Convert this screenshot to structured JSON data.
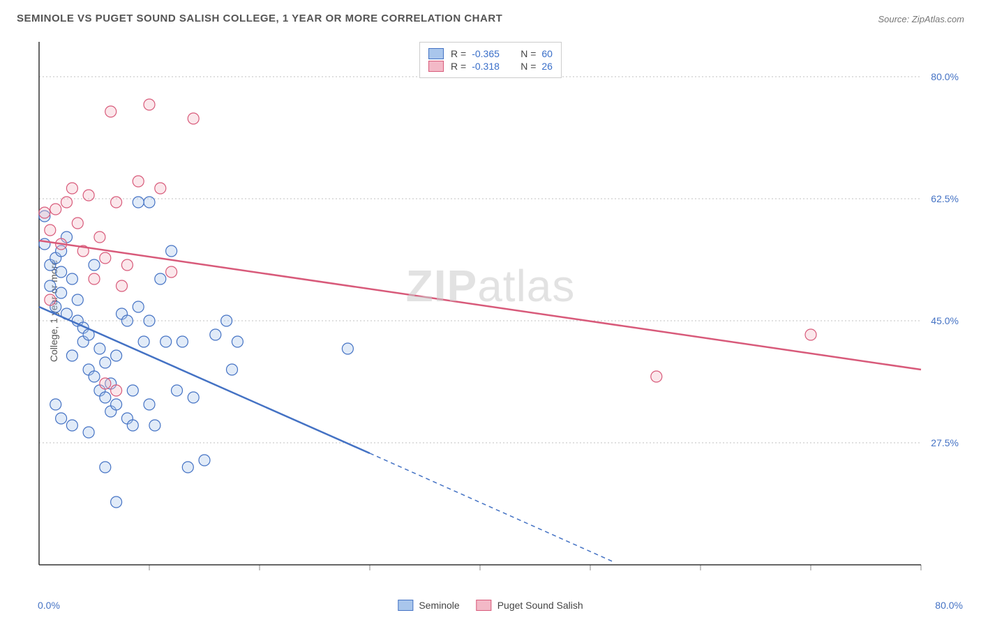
{
  "title": "SEMINOLE VS PUGET SOUND SALISH COLLEGE, 1 YEAR OR MORE CORRELATION CHART",
  "source": "Source: ZipAtlas.com",
  "ylabel": "College, 1 year or more",
  "watermark_left": "ZIP",
  "watermark_right": "atlas",
  "chart": {
    "type": "scatter",
    "xlim": [
      0,
      80
    ],
    "ylim": [
      10,
      85
    ],
    "x_tick_step": 10,
    "y_ticks": [
      27.5,
      45.0,
      62.5,
      80.0
    ],
    "y_tick_labels": [
      "27.5%",
      "45.0%",
      "62.5%",
      "80.0%"
    ],
    "x_min_label": "0.0%",
    "x_max_label": "80.0%",
    "background_color": "#ffffff",
    "grid_color": "#c0c0c0",
    "axis_color": "#333333",
    "tick_label_color": "#4472c4",
    "marker_radius": 8,
    "marker_stroke_width": 1.2,
    "marker_fill_opacity": 0.35,
    "series": [
      {
        "name": "Seminole",
        "color_fill": "#a9c6ec",
        "color_stroke": "#4472c4",
        "R": "-0.365",
        "N": "60",
        "trend": {
          "x1": 0,
          "y1": 47.0,
          "x2": 30,
          "y2": 26.0,
          "x_solid_end": 30,
          "x_dash_end": 52,
          "y_dash_end": 10.5
        },
        "points": [
          [
            0.5,
            60
          ],
          [
            0.5,
            56
          ],
          [
            1,
            53
          ],
          [
            1,
            50
          ],
          [
            1.5,
            47
          ],
          [
            1.5,
            54
          ],
          [
            2,
            55
          ],
          [
            2,
            52
          ],
          [
            2,
            49
          ],
          [
            2.5,
            46
          ],
          [
            2.5,
            57
          ],
          [
            3,
            51
          ],
          [
            3,
            40
          ],
          [
            3.5,
            48
          ],
          [
            3.5,
            45
          ],
          [
            4,
            44
          ],
          [
            4,
            42
          ],
          [
            4.5,
            43
          ],
          [
            4.5,
            38
          ],
          [
            5,
            37
          ],
          [
            5,
            53
          ],
          [
            5.5,
            41
          ],
          [
            5.5,
            35
          ],
          [
            6,
            39
          ],
          [
            6,
            34
          ],
          [
            6.5,
            36
          ],
          [
            6.5,
            32
          ],
          [
            7,
            40
          ],
          [
            7,
            33
          ],
          [
            7.5,
            46
          ],
          [
            8,
            45
          ],
          [
            8,
            31
          ],
          [
            8.5,
            35
          ],
          [
            8.5,
            30
          ],
          [
            9,
            62
          ],
          [
            9,
            47
          ],
          [
            9.5,
            42
          ],
          [
            10,
            45
          ],
          [
            10,
            33
          ],
          [
            10.5,
            30
          ],
          [
            11,
            51
          ],
          [
            11.5,
            42
          ],
          [
            12,
            55
          ],
          [
            12.5,
            35
          ],
          [
            13,
            42
          ],
          [
            13.5,
            24
          ],
          [
            14,
            34
          ],
          [
            15,
            25
          ],
          [
            16,
            43
          ],
          [
            17,
            45
          ],
          [
            17.5,
            38
          ],
          [
            18,
            42
          ],
          [
            7,
            19
          ],
          [
            6,
            24
          ],
          [
            4.5,
            29
          ],
          [
            3,
            30
          ],
          [
            2,
            31
          ],
          [
            1.5,
            33
          ],
          [
            28,
            41
          ],
          [
            10,
            62
          ]
        ]
      },
      {
        "name": "Puget Sound Salish",
        "color_fill": "#f3b9c7",
        "color_stroke": "#d85a7a",
        "R": "-0.318",
        "N": "26",
        "trend": {
          "x1": 0,
          "y1": 56.5,
          "x2": 80,
          "y2": 38.0,
          "x_solid_end": 80,
          "x_dash_end": 80,
          "y_dash_end": 38.0
        },
        "points": [
          [
            0.5,
            60.5
          ],
          [
            1,
            58
          ],
          [
            1.5,
            61
          ],
          [
            2,
            56
          ],
          [
            2.5,
            62
          ],
          [
            3,
            64
          ],
          [
            3.5,
            59
          ],
          [
            4,
            55
          ],
          [
            4.5,
            63
          ],
          [
            5,
            51
          ],
          [
            5.5,
            57
          ],
          [
            6,
            54
          ],
          [
            6.5,
            75
          ],
          [
            7,
            62
          ],
          [
            7.5,
            50
          ],
          [
            8,
            53
          ],
          [
            9,
            65
          ],
          [
            10,
            76
          ],
          [
            11,
            64
          ],
          [
            12,
            52
          ],
          [
            14,
            74
          ],
          [
            6,
            36
          ],
          [
            7,
            35
          ],
          [
            56,
            37
          ],
          [
            70,
            43
          ],
          [
            1,
            48
          ]
        ]
      }
    ]
  },
  "legend_bottom": [
    {
      "label": "Seminole",
      "fill": "#a9c6ec",
      "stroke": "#4472c4"
    },
    {
      "label": "Puget Sound Salish",
      "fill": "#f3b9c7",
      "stroke": "#d85a7a"
    }
  ]
}
